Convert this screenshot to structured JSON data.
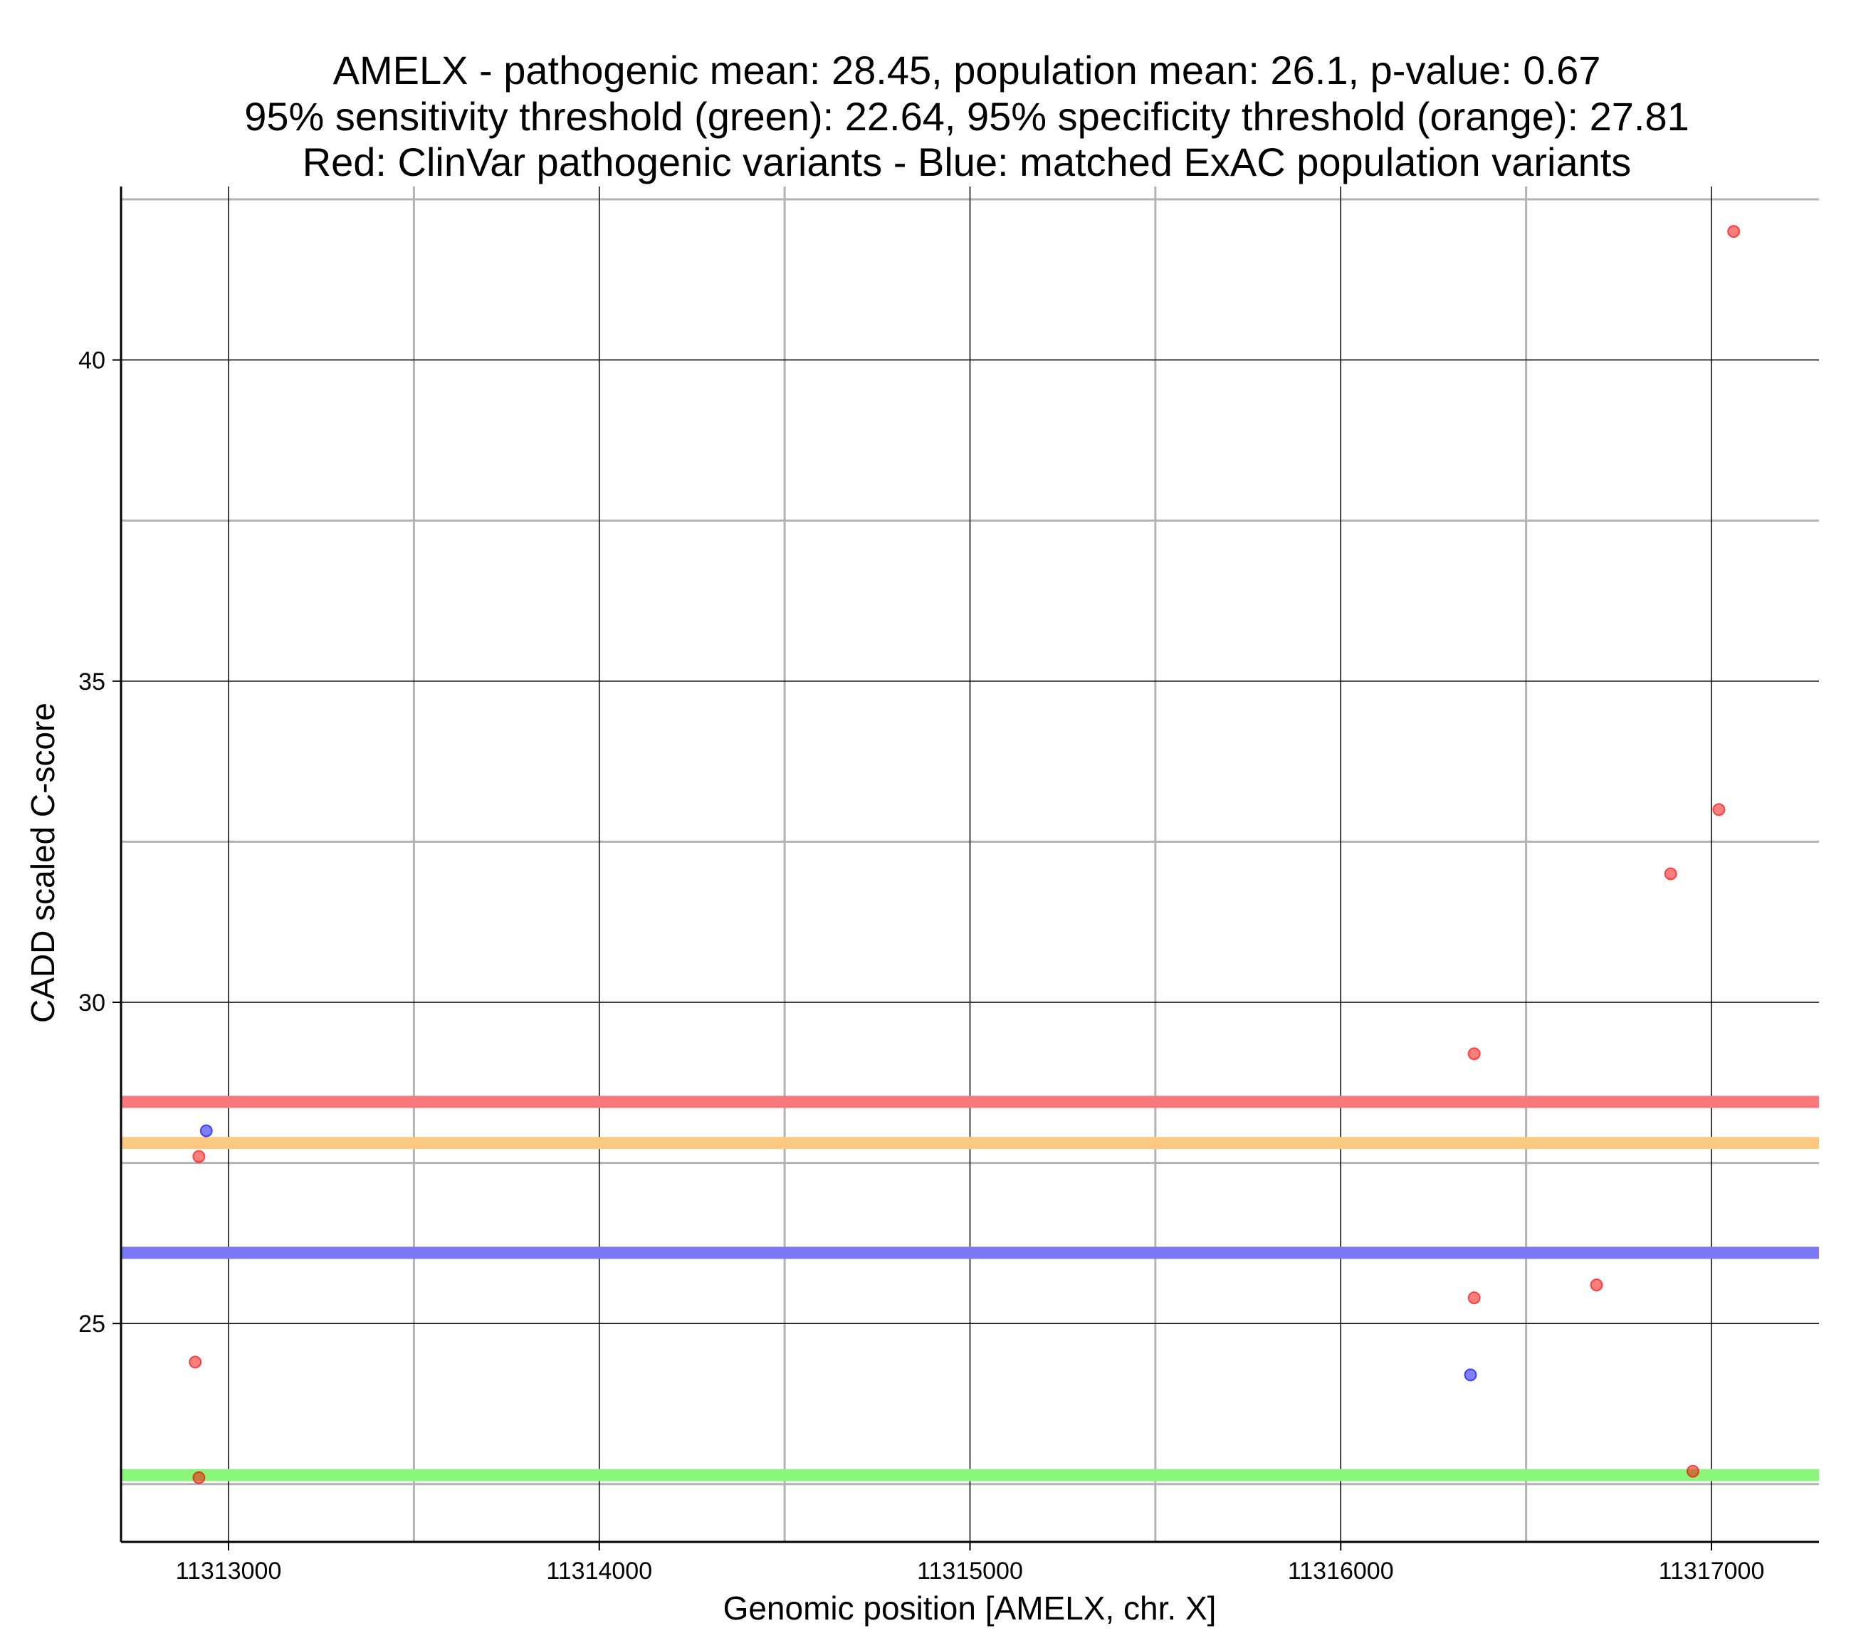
{
  "chart_data": {
    "type": "scatter",
    "title_lines": [
      "AMELX - pathogenic mean: 28.45, population mean: 26.1, p-value: 0.67",
      "95% sensitivity threshold (green): 22.64, 95% specificity threshold (orange): 27.81",
      "Red: ClinVar pathogenic variants - Blue: matched ExAC population variants"
    ],
    "xlabel": "Genomic position [AMELX, chr. X]",
    "ylabel": "CADD scaled C-score",
    "xlim": [
      11312710,
      11317290
    ],
    "ylim": [
      21.6,
      42.7
    ],
    "x_major_ticks": [
      11313000,
      11314000,
      11315000,
      11316000,
      11317000
    ],
    "x_minor_ticks": [
      11313500,
      11314500,
      11315500,
      11316500
    ],
    "y_major_ticks": [
      25,
      30,
      35,
      40
    ],
    "y_minor_ticks": [
      22.5,
      27.5,
      32.5,
      37.5,
      42.5
    ],
    "grid": true,
    "colors": {
      "pathogenic": "#ff0000",
      "population": "#0000ff",
      "pathogenic_mean": "#f8787b",
      "population_mean": "#7b78f5",
      "sensitivity": "#89f57a",
      "specificity": "#fdc87f",
      "major_grid": "#000000",
      "minor_grid": "#b3b3b3"
    },
    "hlines": [
      {
        "name": "pathogenic mean",
        "y": 28.45,
        "color_key": "pathogenic_mean"
      },
      {
        "name": "specificity threshold",
        "y": 27.81,
        "color_key": "specificity"
      },
      {
        "name": "population mean",
        "y": 26.1,
        "color_key": "population_mean"
      },
      {
        "name": "sensitivity threshold",
        "y": 22.64,
        "color_key": "sensitivity"
      }
    ],
    "series": [
      {
        "color_key": "pathogenic",
        "points": [
          {
            "x": 11312910,
            "y": 24.4
          },
          {
            "x": 11312920,
            "y": 27.6
          },
          {
            "x": 11312920,
            "y": 22.6
          },
          {
            "x": 11316360,
            "y": 29.2
          },
          {
            "x": 11316360,
            "y": 25.4
          },
          {
            "x": 11316690,
            "y": 25.6
          },
          {
            "x": 11316890,
            "y": 32.0
          },
          {
            "x": 11316950,
            "y": 22.7
          },
          {
            "x": 11317020,
            "y": 33.0
          },
          {
            "x": 11317060,
            "y": 42.0
          }
        ]
      },
      {
        "color_key": "population",
        "points": [
          {
            "x": 11312940,
            "y": 28.0
          },
          {
            "x": 11316350,
            "y": 24.2
          }
        ]
      }
    ]
  }
}
